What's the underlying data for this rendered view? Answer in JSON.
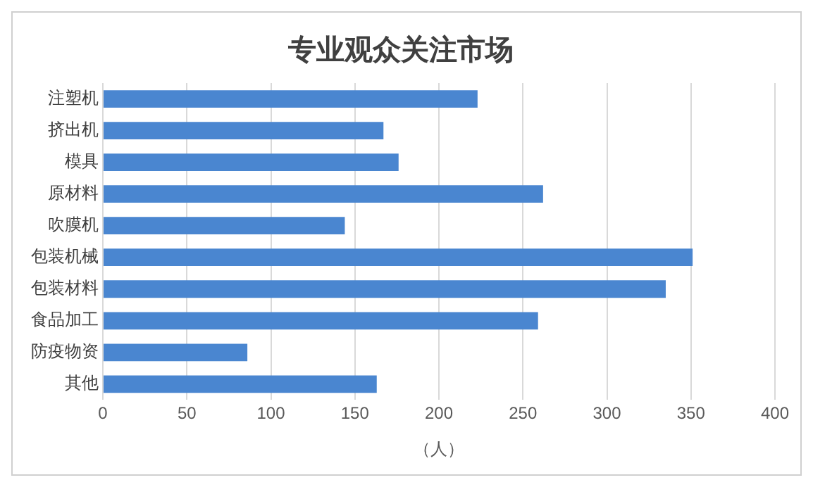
{
  "chart_data": {
    "type": "bar",
    "orientation": "horizontal",
    "title": "专业观众关注市场",
    "xlabel": "（人）",
    "categories": [
      "注塑机",
      "挤出机",
      "模具",
      "原材料",
      "吹膜机",
      "包装机械",
      "包装材料",
      "食品加工",
      "防疫物资",
      "其他"
    ],
    "values": [
      223,
      167,
      176,
      262,
      144,
      351,
      335,
      259,
      86,
      163
    ],
    "color": "#4a86d0",
    "xlim": [
      0,
      400
    ],
    "xticks": [
      0,
      50,
      100,
      150,
      200,
      250,
      300,
      350,
      400
    ],
    "grid": "x",
    "legend": false
  }
}
